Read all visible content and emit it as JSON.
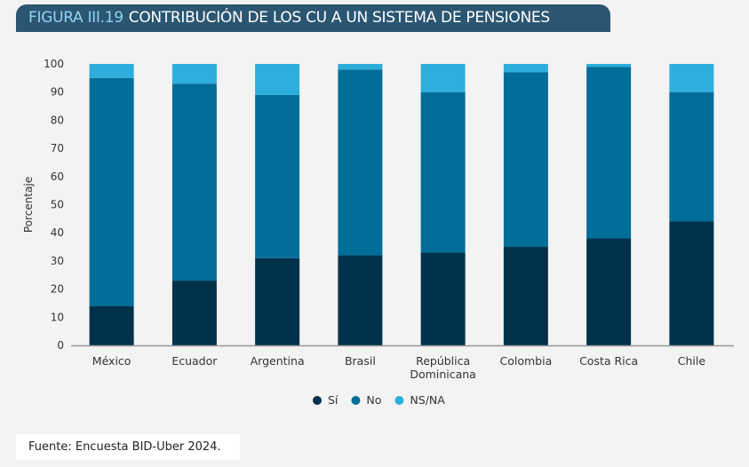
{
  "header": {
    "figure_number": "FIGURA III.19",
    "title": "CONTRIBUCIÓN DE LOS CU A UN SISTEMA DE PENSIONES"
  },
  "source": "Fuente: Encuesta BID-Uber 2024.",
  "chart_data": {
    "type": "bar",
    "stacked": true,
    "title": "CONTRIBUCIÓN DE LOS CU A UN SISTEMA DE PENSIONES",
    "ylabel": "Porcentaje",
    "xlabel": "",
    "ylim": [
      0,
      100
    ],
    "yticks": [
      0,
      10,
      20,
      30,
      40,
      50,
      60,
      70,
      80,
      90,
      100
    ],
    "categories": [
      "México",
      "Ecuador",
      "Argentina",
      "Brasil",
      "República Dominicana",
      "Colombia",
      "Costa Rica",
      "Chile"
    ],
    "series": [
      {
        "name": "Sí",
        "color": "#01324b",
        "values": [
          14,
          23,
          31,
          32,
          33,
          35,
          38,
          44
        ]
      },
      {
        "name": "No",
        "color": "#006e98",
        "values": [
          81,
          70,
          58,
          66,
          57,
          62,
          61,
          46
        ]
      },
      {
        "name": "NS/NA",
        "color": "#2eaedc",
        "values": [
          5,
          7,
          11,
          2,
          10,
          3,
          1,
          10
        ]
      }
    ],
    "legend_position": "bottom",
    "grid": false
  }
}
